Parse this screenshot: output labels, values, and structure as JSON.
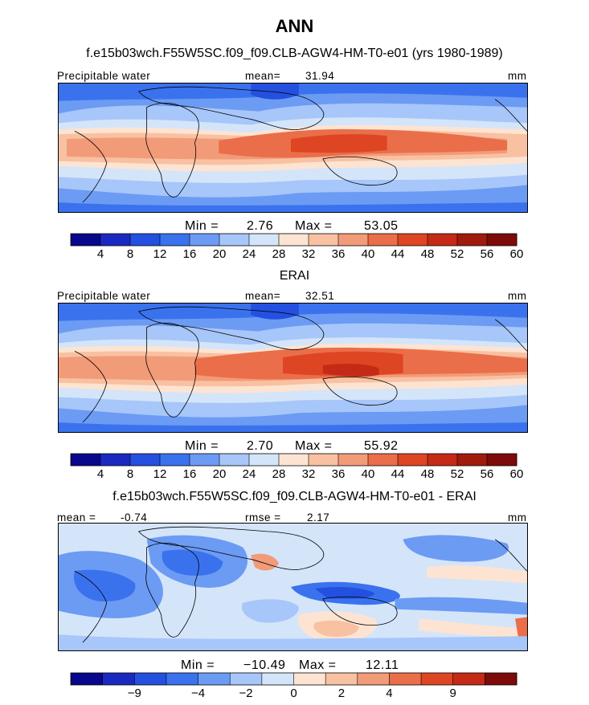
{
  "figure": {
    "title": "ANN",
    "colors": {
      "fullfield": [
        "#08088c",
        "#1a2ac0",
        "#2450e0",
        "#3a72ee",
        "#6c9bf4",
        "#a7c6f9",
        "#d4e5fa",
        "#fde4d2",
        "#f8c1a2",
        "#f29b78",
        "#ea6e49",
        "#de4523",
        "#c42a15",
        "#a11b0d",
        "#7d0b09"
      ],
      "difference": [
        "#08088c",
        "#1a2ac0",
        "#2450e0",
        "#3a72ee",
        "#6c9bf4",
        "#a7c6f9",
        "#d4e5fa",
        "#fde4d2",
        "#f8c1a2",
        "#f29b78",
        "#ea6e49",
        "#de4523",
        "#c42a15",
        "#7d0b09"
      ]
    }
  },
  "chart_data": [
    {
      "type": "heatmap",
      "title": "f.e15b03wch.F55W5SC.f09_f09.CLB-AGW4-HM-T0-e01 (yrs 1980-1989)",
      "field_label": "Precipitable water",
      "stat_label": "mean=",
      "stat_value": "31.94",
      "units": "mm",
      "min_label": "Min =",
      "min": "2.76",
      "max_label": "Max =",
      "max": "53.05",
      "colorbar_ticks": [
        "4",
        "8",
        "12",
        "16",
        "20",
        "24",
        "28",
        "32",
        "36",
        "40",
        "44",
        "48",
        "52",
        "56",
        "60"
      ]
    },
    {
      "type": "heatmap",
      "title": "ERAI",
      "field_label": "Precipitable water",
      "stat_label": "mean=",
      "stat_value": "32.51",
      "units": "mm",
      "min_label": "Min =",
      "min": "2.70",
      "max_label": "Max =",
      "max": "55.92",
      "colorbar_ticks": [
        "4",
        "8",
        "12",
        "16",
        "20",
        "24",
        "28",
        "32",
        "36",
        "40",
        "44",
        "48",
        "52",
        "56",
        "60"
      ]
    },
    {
      "type": "heatmap",
      "title": "f.e15b03wch.F55W5SC.f09_f09.CLB-AGW4-HM-T0-e01 - ERAI",
      "stat_label": "mean =",
      "stat_value": "-0.74",
      "rmse_label": "rmse =",
      "rmse_value": "2.17",
      "units": "mm",
      "min_label": "Min =",
      "min": "-10.49",
      "max_label": "Max =",
      "max": "12.11",
      "colorbar_ticks": [
        "-9",
        "-4",
        "-2",
        "0",
        "2",
        "4",
        "9"
      ]
    }
  ]
}
